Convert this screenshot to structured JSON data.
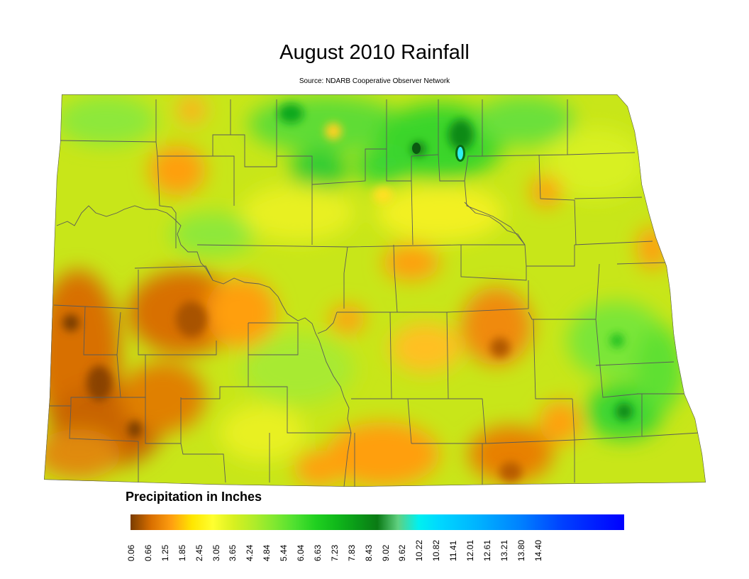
{
  "map": {
    "title": "August 2010 Rainfall",
    "subtitle": "Source: NDARB Cooperative Observer Network",
    "region": "North Dakota",
    "base_color": "#c8e619",
    "boundary_color": "#5a5a5a"
  },
  "legend": {
    "title": "Precipitation in Inches",
    "unit": "inches",
    "min": 0.06,
    "max": 14.4,
    "ticks": [
      "0.06",
      "0.66",
      "1.25",
      "1.85",
      "2.45",
      "3.05",
      "3.65",
      "4.24",
      "4.84",
      "5.44",
      "6.04",
      "6.63",
      "7.23",
      "7.83",
      "8.43",
      "9.02",
      "9.62",
      "10.22",
      "10.82",
      "11.41",
      "12.01",
      "12.61",
      "13.21",
      "13.80",
      "14.40"
    ],
    "color_stops": [
      {
        "value": 0.06,
        "color": "#7a3c00"
      },
      {
        "value": 0.66,
        "color": "#d96f00"
      },
      {
        "value": 1.25,
        "color": "#ff9f10"
      },
      {
        "value": 1.85,
        "color": "#ffe600"
      },
      {
        "value": 2.45,
        "color": "#ffff30"
      },
      {
        "value": 3.05,
        "color": "#d8f020"
      },
      {
        "value": 3.65,
        "color": "#b0ec2a"
      },
      {
        "value": 4.24,
        "color": "#80e830"
      },
      {
        "value": 4.84,
        "color": "#4ee030"
      },
      {
        "value": 5.44,
        "color": "#20d020"
      },
      {
        "value": 6.04,
        "color": "#10b81a"
      },
      {
        "value": 6.63,
        "color": "#0a9a18"
      },
      {
        "value": 7.23,
        "color": "#0a7a14"
      },
      {
        "value": 7.83,
        "color": "#60d080"
      },
      {
        "value": 8.43,
        "color": "#00f0f0"
      },
      {
        "value": 9.02,
        "color": "#00d8ff"
      },
      {
        "value": 10.22,
        "color": "#00b0ff"
      },
      {
        "value": 11.41,
        "color": "#0080ff"
      },
      {
        "value": 12.61,
        "color": "#0040ff"
      },
      {
        "value": 14.4,
        "color": "#0000ff"
      }
    ]
  }
}
